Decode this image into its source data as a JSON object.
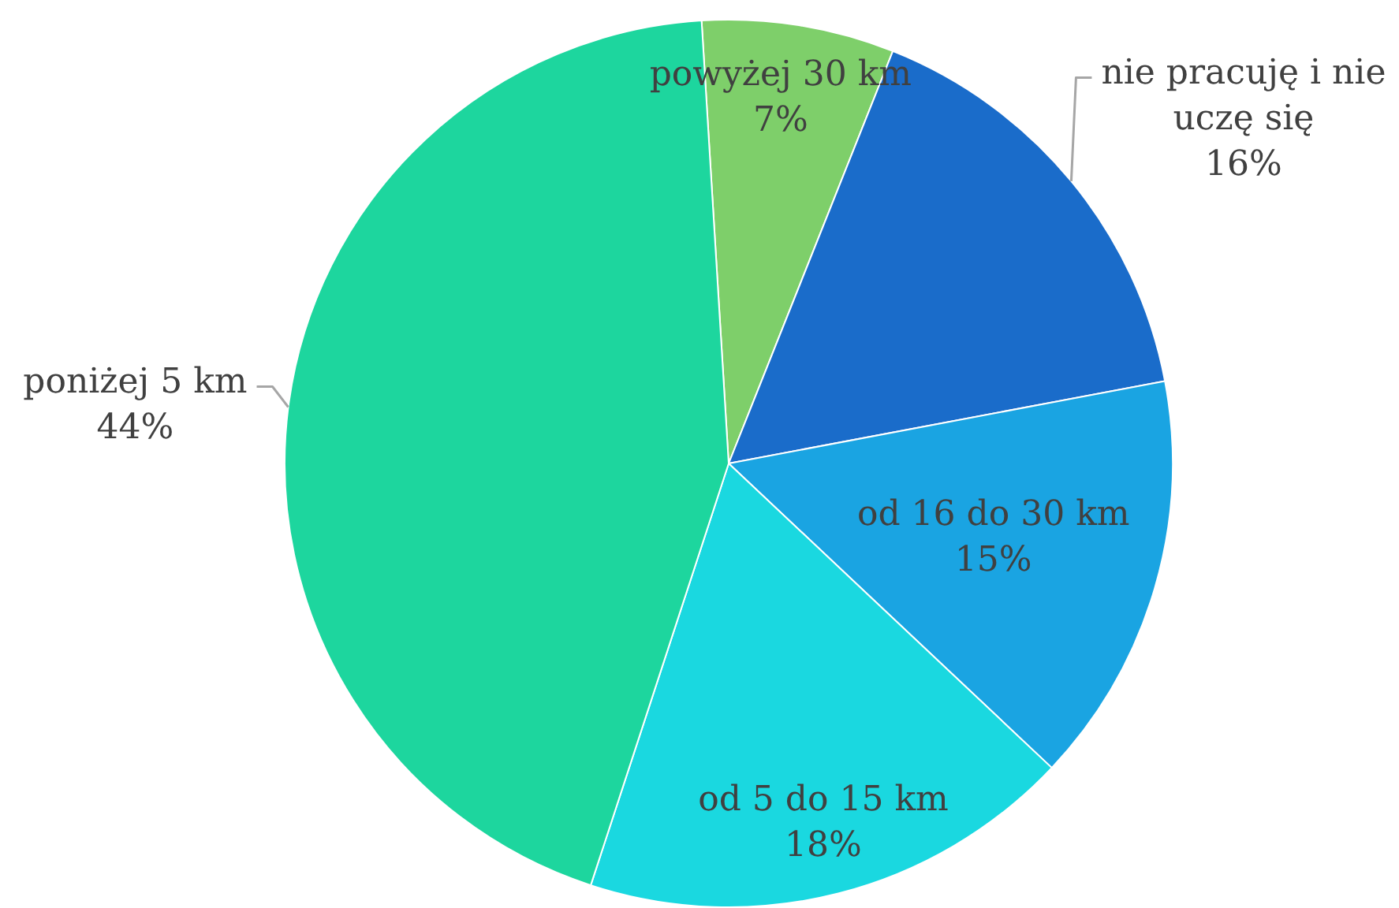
{
  "chart_data": {
    "type": "pie",
    "categories": [
      "powyżej 30 km",
      "nie pracuję i nie uczę się",
      "od 16 do 30 km",
      "od 5 do 15 km",
      "poniżej 5 km"
    ],
    "values": [
      7,
      16,
      15,
      18,
      44
    ],
    "colors": [
      "#7ecf6a",
      "#1a6cca",
      "#1aa4e2",
      "#1ad8e0",
      "#1dd69e"
    ],
    "value_labels": [
      "7%",
      "16%",
      "15%",
      "18%",
      "44%"
    ]
  }
}
